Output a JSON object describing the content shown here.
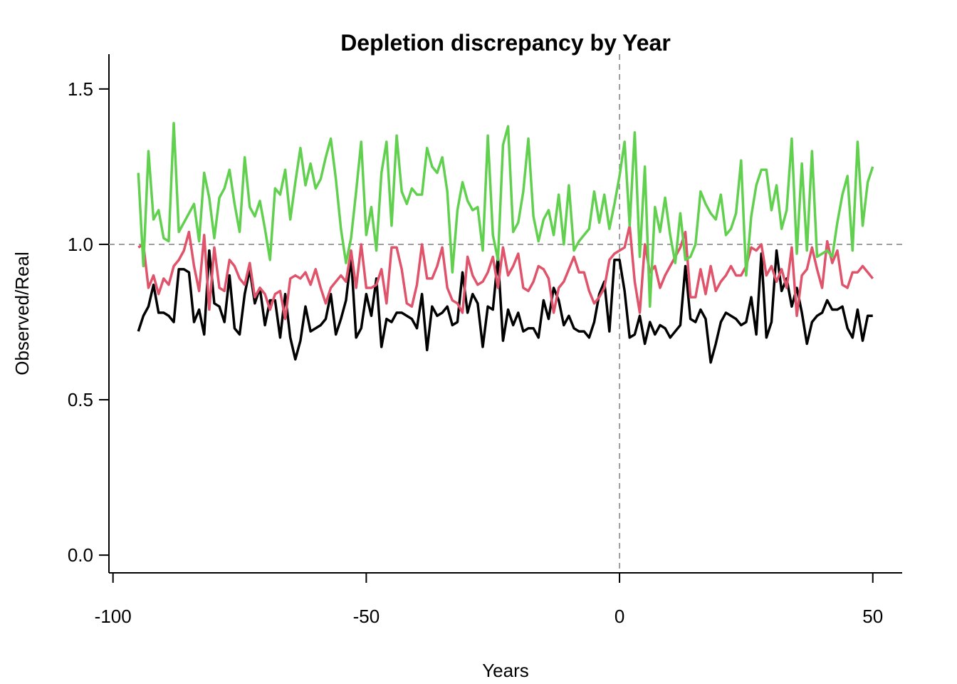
{
  "chart_data": {
    "type": "line",
    "title": "Depletion discrepancy by Year",
    "xlabel": "Years",
    "ylabel": "Observed/Real",
    "x": [
      -95,
      -94,
      -93,
      -92,
      -91,
      -90,
      -89,
      -88,
      -87,
      -86,
      -85,
      -84,
      -83,
      -82,
      -81,
      -80,
      -79,
      -78,
      -77,
      -76,
      -75,
      -74,
      -73,
      -72,
      -71,
      -70,
      -69,
      -68,
      -67,
      -66,
      -65,
      -64,
      -63,
      -62,
      -61,
      -60,
      -59,
      -58,
      -57,
      -56,
      -55,
      -54,
      -53,
      -52,
      -51,
      -50,
      -49,
      -48,
      -47,
      -46,
      -45,
      -44,
      -43,
      -42,
      -41,
      -40,
      -39,
      -38,
      -37,
      -36,
      -35,
      -34,
      -33,
      -32,
      -31,
      -30,
      -29,
      -28,
      -27,
      -26,
      -25,
      -24,
      -23,
      -22,
      -21,
      -20,
      -19,
      -18,
      -17,
      -16,
      -15,
      -14,
      -13,
      -12,
      -11,
      -10,
      -9,
      -8,
      -7,
      -6,
      -5,
      -4,
      -3,
      -2,
      -1,
      0,
      1,
      2,
      3,
      4,
      5,
      6,
      7,
      8,
      9,
      10,
      11,
      12,
      13,
      14,
      15,
      16,
      17,
      18,
      19,
      20,
      21,
      22,
      23,
      24,
      25,
      26,
      27,
      28,
      29,
      30,
      31,
      32,
      33,
      34,
      35,
      36,
      37,
      38,
      39,
      40,
      41,
      42,
      43,
      44,
      45,
      46,
      47,
      48,
      49,
      50
    ],
    "series": [
      {
        "color": "#000000",
        "values": [
          0.72,
          0.77,
          0.8,
          0.87,
          0.78,
          0.78,
          0.77,
          0.75,
          0.92,
          0.92,
          0.91,
          0.75,
          0.79,
          0.71,
          0.98,
          0.81,
          0.8,
          0.75,
          0.9,
          0.73,
          0.71,
          0.84,
          0.92,
          0.81,
          0.86,
          0.74,
          0.82,
          0.82,
          0.7,
          0.84,
          0.7,
          0.63,
          0.69,
          0.8,
          0.72,
          0.73,
          0.74,
          0.76,
          0.84,
          0.71,
          0.76,
          0.82,
          0.96,
          0.7,
          0.73,
          0.84,
          0.77,
          0.89,
          0.67,
          0.76,
          0.75,
          0.78,
          0.78,
          0.77,
          0.76,
          0.73,
          0.84,
          0.66,
          0.8,
          0.77,
          0.78,
          0.8,
          0.74,
          0.75,
          0.91,
          0.78,
          0.84,
          0.81,
          0.67,
          0.8,
          0.79,
          0.96,
          0.69,
          0.79,
          0.74,
          0.78,
          0.72,
          0.73,
          0.73,
          0.7,
          0.82,
          0.76,
          0.86,
          0.82,
          0.74,
          0.77,
          0.73,
          0.72,
          0.72,
          0.7,
          0.75,
          0.84,
          0.88,
          0.72,
          0.95,
          0.95,
          0.85,
          0.7,
          0.71,
          0.77,
          0.68,
          0.75,
          0.71,
          0.74,
          0.73,
          0.7,
          0.72,
          0.74,
          0.93,
          0.76,
          0.75,
          0.79,
          0.76,
          0.62,
          0.68,
          0.75,
          0.78,
          0.77,
          0.76,
          0.74,
          0.75,
          0.83,
          0.71,
          0.97,
          0.7,
          0.75,
          0.98,
          0.85,
          0.89,
          0.8,
          0.86,
          0.78,
          0.68,
          0.75,
          0.77,
          0.78,
          0.82,
          0.79,
          0.79,
          0.8,
          0.73,
          0.7,
          0.79,
          0.69,
          0.77,
          0.77
        ]
      },
      {
        "color": "#DF536B",
        "values": [
          0.99,
          1.0,
          0.86,
          0.9,
          0.84,
          0.89,
          0.87,
          0.93,
          0.95,
          0.98,
          1.04,
          0.93,
          0.85,
          1.03,
          0.79,
          0.99,
          0.86,
          0.85,
          0.95,
          0.93,
          0.89,
          0.87,
          0.94,
          0.83,
          0.86,
          0.84,
          0.79,
          0.84,
          0.85,
          0.76,
          0.89,
          0.9,
          0.89,
          0.91,
          0.87,
          0.92,
          0.86,
          0.81,
          0.86,
          0.88,
          0.9,
          0.88,
          0.98,
          0.86,
          1.0,
          0.86,
          0.86,
          0.87,
          0.92,
          0.81,
          0.99,
          0.99,
          0.92,
          0.81,
          0.8,
          0.87,
          1.0,
          0.89,
          0.89,
          0.93,
          0.99,
          0.86,
          0.82,
          0.81,
          0.78,
          0.96,
          0.9,
          0.87,
          0.88,
          0.91,
          0.96,
          0.86,
          0.99,
          0.9,
          0.93,
          0.97,
          0.86,
          0.85,
          0.88,
          0.93,
          0.92,
          0.89,
          0.78,
          0.86,
          0.88,
          0.92,
          0.96,
          0.91,
          0.91,
          0.85,
          0.81,
          0.83,
          0.86,
          0.95,
          0.97,
          0.98,
          0.99,
          1.06,
          0.88,
          0.78,
          1.0,
          0.91,
          0.93,
          0.86,
          0.9,
          0.93,
          0.96,
          0.99,
          1.04,
          0.83,
          0.83,
          0.92,
          0.84,
          0.93,
          0.85,
          0.88,
          0.9,
          0.93,
          0.9,
          0.9,
          0.93,
          0.99,
          0.98,
          1.0,
          0.9,
          0.93,
          0.88,
          0.92,
          0.86,
          0.99,
          0.77,
          0.9,
          0.92,
          0.99,
          0.92,
          0.86,
          1.01,
          0.94,
          0.98,
          0.87,
          0.86,
          0.91,
          0.91,
          0.93,
          0.91,
          0.89
        ]
      },
      {
        "color": "#61D04F",
        "values": [
          1.23,
          0.93,
          1.3,
          1.08,
          1.11,
          1.02,
          1.01,
          1.39,
          1.04,
          1.07,
          1.1,
          1.13,
          1.01,
          1.23,
          1.15,
          1.02,
          1.15,
          1.18,
          1.24,
          1.13,
          1.04,
          1.28,
          1.12,
          1.09,
          1.14,
          1.05,
          0.95,
          1.18,
          1.16,
          1.24,
          1.08,
          1.2,
          1.31,
          1.19,
          1.26,
          1.18,
          1.21,
          1.28,
          1.34,
          1.21,
          1.05,
          0.94,
          1.02,
          1.17,
          1.33,
          1.03,
          1.12,
          0.98,
          1.23,
          1.33,
          1.06,
          1.35,
          1.17,
          1.13,
          1.18,
          1.16,
          1.16,
          1.31,
          1.25,
          1.23,
          1.28,
          1.17,
          0.91,
          1.11,
          1.2,
          1.14,
          1.11,
          1.12,
          0.98,
          1.35,
          1.03,
          0.95,
          1.32,
          1.38,
          1.04,
          1.07,
          1.17,
          1.34,
          1.09,
          1.01,
          1.08,
          1.11,
          1.03,
          1.16,
          1.0,
          1.19,
          0.98,
          1.01,
          1.03,
          1.05,
          1.17,
          1.07,
          1.16,
          1.05,
          1.13,
          1.22,
          1.33,
          1.06,
          1.36,
          0.96,
          1.25,
          0.8,
          1.12,
          1.04,
          1.15,
          1.03,
          0.94,
          1.1,
          0.95,
          0.96,
          1.0,
          1.17,
          1.13,
          1.1,
          1.08,
          1.16,
          1.03,
          1.05,
          1.1,
          1.27,
          0.9,
          1.09,
          1.19,
          1.24,
          1.24,
          1.11,
          1.19,
          1.05,
          1.11,
          1.34,
          0.97,
          1.26,
          0.98,
          1.3,
          0.96,
          0.97,
          0.98,
          0.96,
          1.07,
          1.16,
          1.22,
          0.98,
          1.33,
          1.06,
          1.2,
          1.25
        ]
      }
    ],
    "xlim": [
      -100.8,
      55.8
    ],
    "xticks": [
      -100,
      -50,
      0,
      50
    ],
    "ylim": [
      -0.057,
      1.612
    ],
    "yticks": [
      {
        "value": 0,
        "label": "0.0"
      },
      0.5,
      {
        "value": 1,
        "label": "1.0"
      },
      1.5
    ],
    "reference_lines": {
      "x": 0,
      "y": 1
    }
  }
}
